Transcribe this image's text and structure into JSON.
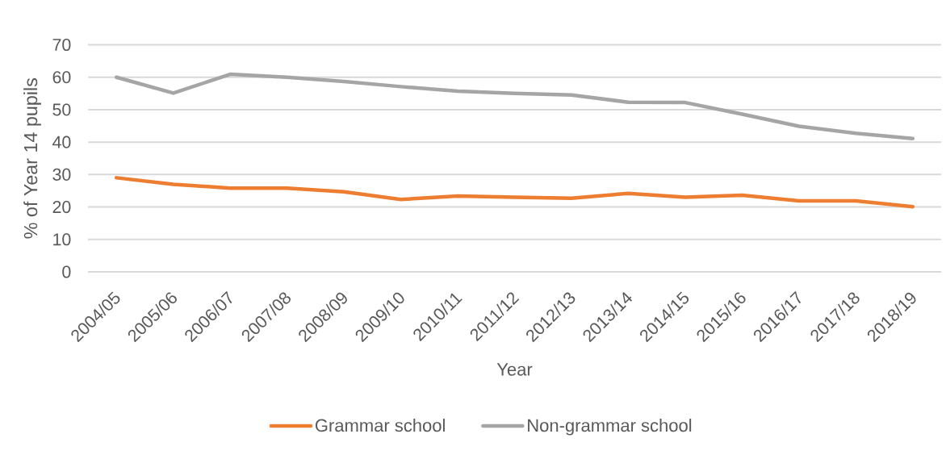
{
  "chart_data": {
    "type": "line",
    "xlabel": "Year",
    "ylabel": "% of Year 14 pupils",
    "categories": [
      "2004/05",
      "2005/06",
      "2006/07",
      "2007/08",
      "2008/09",
      "2009/10",
      "2010/11",
      "2011/12",
      "2012/13",
      "2013/14",
      "2014/15",
      "2015/16",
      "2016/17",
      "2017/18",
      "2018/19"
    ],
    "series": [
      {
        "name": "Grammar school",
        "color": "#ed7d31",
        "values": [
          29,
          27,
          25.8,
          25.8,
          24.7,
          22.3,
          23.4,
          23,
          22.7,
          24.2,
          23,
          23.6,
          21.9,
          21.9,
          20.1
        ]
      },
      {
        "name": "Non-grammar school",
        "color": "#a5a5a5",
        "values": [
          60,
          55.1,
          60.9,
          60,
          58.7,
          57.1,
          55.7,
          55,
          54.5,
          52.3,
          52.2,
          48.6,
          44.9,
          42.7,
          41.1
        ]
      }
    ],
    "ylim": [
      0,
      70
    ],
    "yticks": [
      0,
      10,
      20,
      30,
      40,
      50,
      60,
      70
    ],
    "grid": "y",
    "legend": "bottom",
    "line_style": "solid"
  }
}
